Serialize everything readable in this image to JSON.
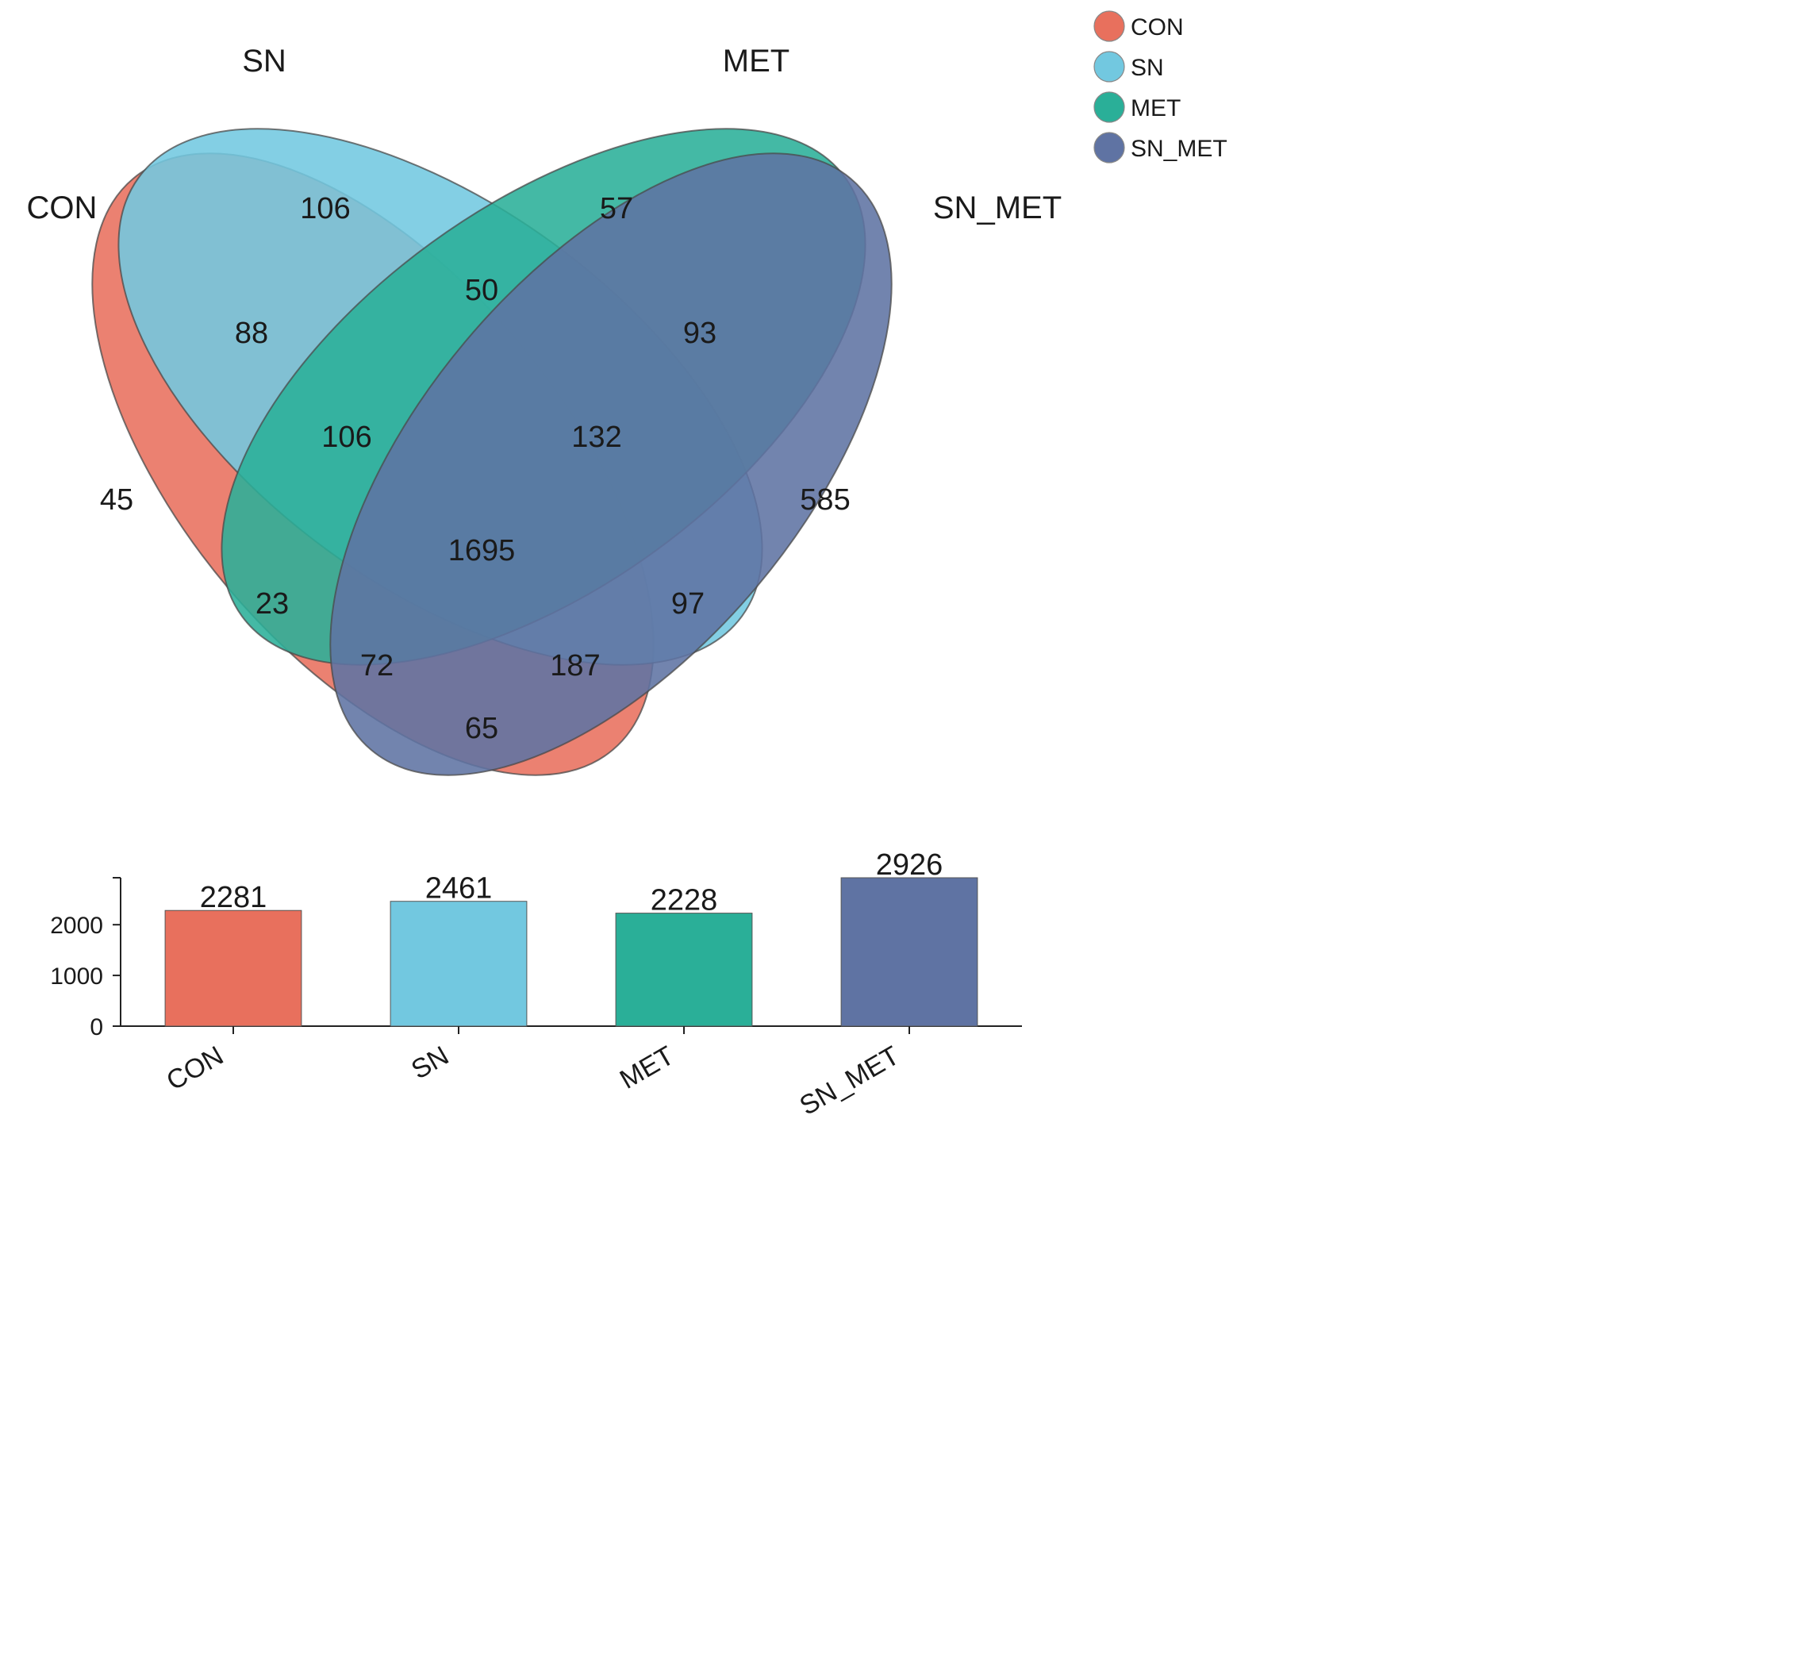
{
  "chart_data": [
    {
      "type": "venn",
      "sets": [
        {
          "name": "CON",
          "color": "#E8705D"
        },
        {
          "name": "SN",
          "color": "#72C8E0"
        },
        {
          "name": "MET",
          "color": "#2AAF98"
        },
        {
          "name": "SN_MET",
          "color": "#5F73A3"
        }
      ],
      "regions": [
        {
          "sets": [
            "SN"
          ],
          "count": "106"
        },
        {
          "sets": [
            "MET"
          ],
          "count": "57"
        },
        {
          "sets": [
            "SN",
            "MET"
          ],
          "count": "50"
        },
        {
          "sets": [
            "CON",
            "SN"
          ],
          "count": "88"
        },
        {
          "sets": [
            "MET",
            "SN_MET"
          ],
          "count": "93"
        },
        {
          "sets": [
            "CON",
            "SN",
            "MET"
          ],
          "count": "106"
        },
        {
          "sets": [
            "SN",
            "MET",
            "SN_MET"
          ],
          "count": "132"
        },
        {
          "sets": [
            "CON"
          ],
          "count": "45"
        },
        {
          "sets": [
            "SN_MET"
          ],
          "count": "585"
        },
        {
          "sets": [
            "CON",
            "SN",
            "MET",
            "SN_MET"
          ],
          "count": "1695"
        },
        {
          "sets": [
            "CON",
            "MET"
          ],
          "count": "23"
        },
        {
          "sets": [
            "SN",
            "SN_MET"
          ],
          "count": "97"
        },
        {
          "sets": [
            "CON",
            "MET",
            "SN_MET"
          ],
          "count": "72"
        },
        {
          "sets": [
            "CON",
            "SN",
            "SN_MET"
          ],
          "count": "187"
        },
        {
          "sets": [
            "CON",
            "SN_MET"
          ],
          "count": "65"
        }
      ],
      "legend": [
        "CON",
        "SN",
        "MET",
        "SN_MET"
      ],
      "legend_position": "top-right"
    },
    {
      "type": "bar",
      "categories": [
        "CON",
        "SN",
        "MET",
        "SN_MET"
      ],
      "values": [
        2281,
        2461,
        2228,
        2926
      ],
      "value_labels": [
        "2281",
        "2461",
        "2228",
        "2926"
      ],
      "colors": [
        "#E8705D",
        "#72C8E0",
        "#2AAF98",
        "#5F73A3"
      ],
      "yticks": [
        "0",
        "1000",
        "2000"
      ],
      "ylim": [
        0,
        2926
      ],
      "title": "",
      "xlabel": "",
      "ylabel": ""
    }
  ]
}
